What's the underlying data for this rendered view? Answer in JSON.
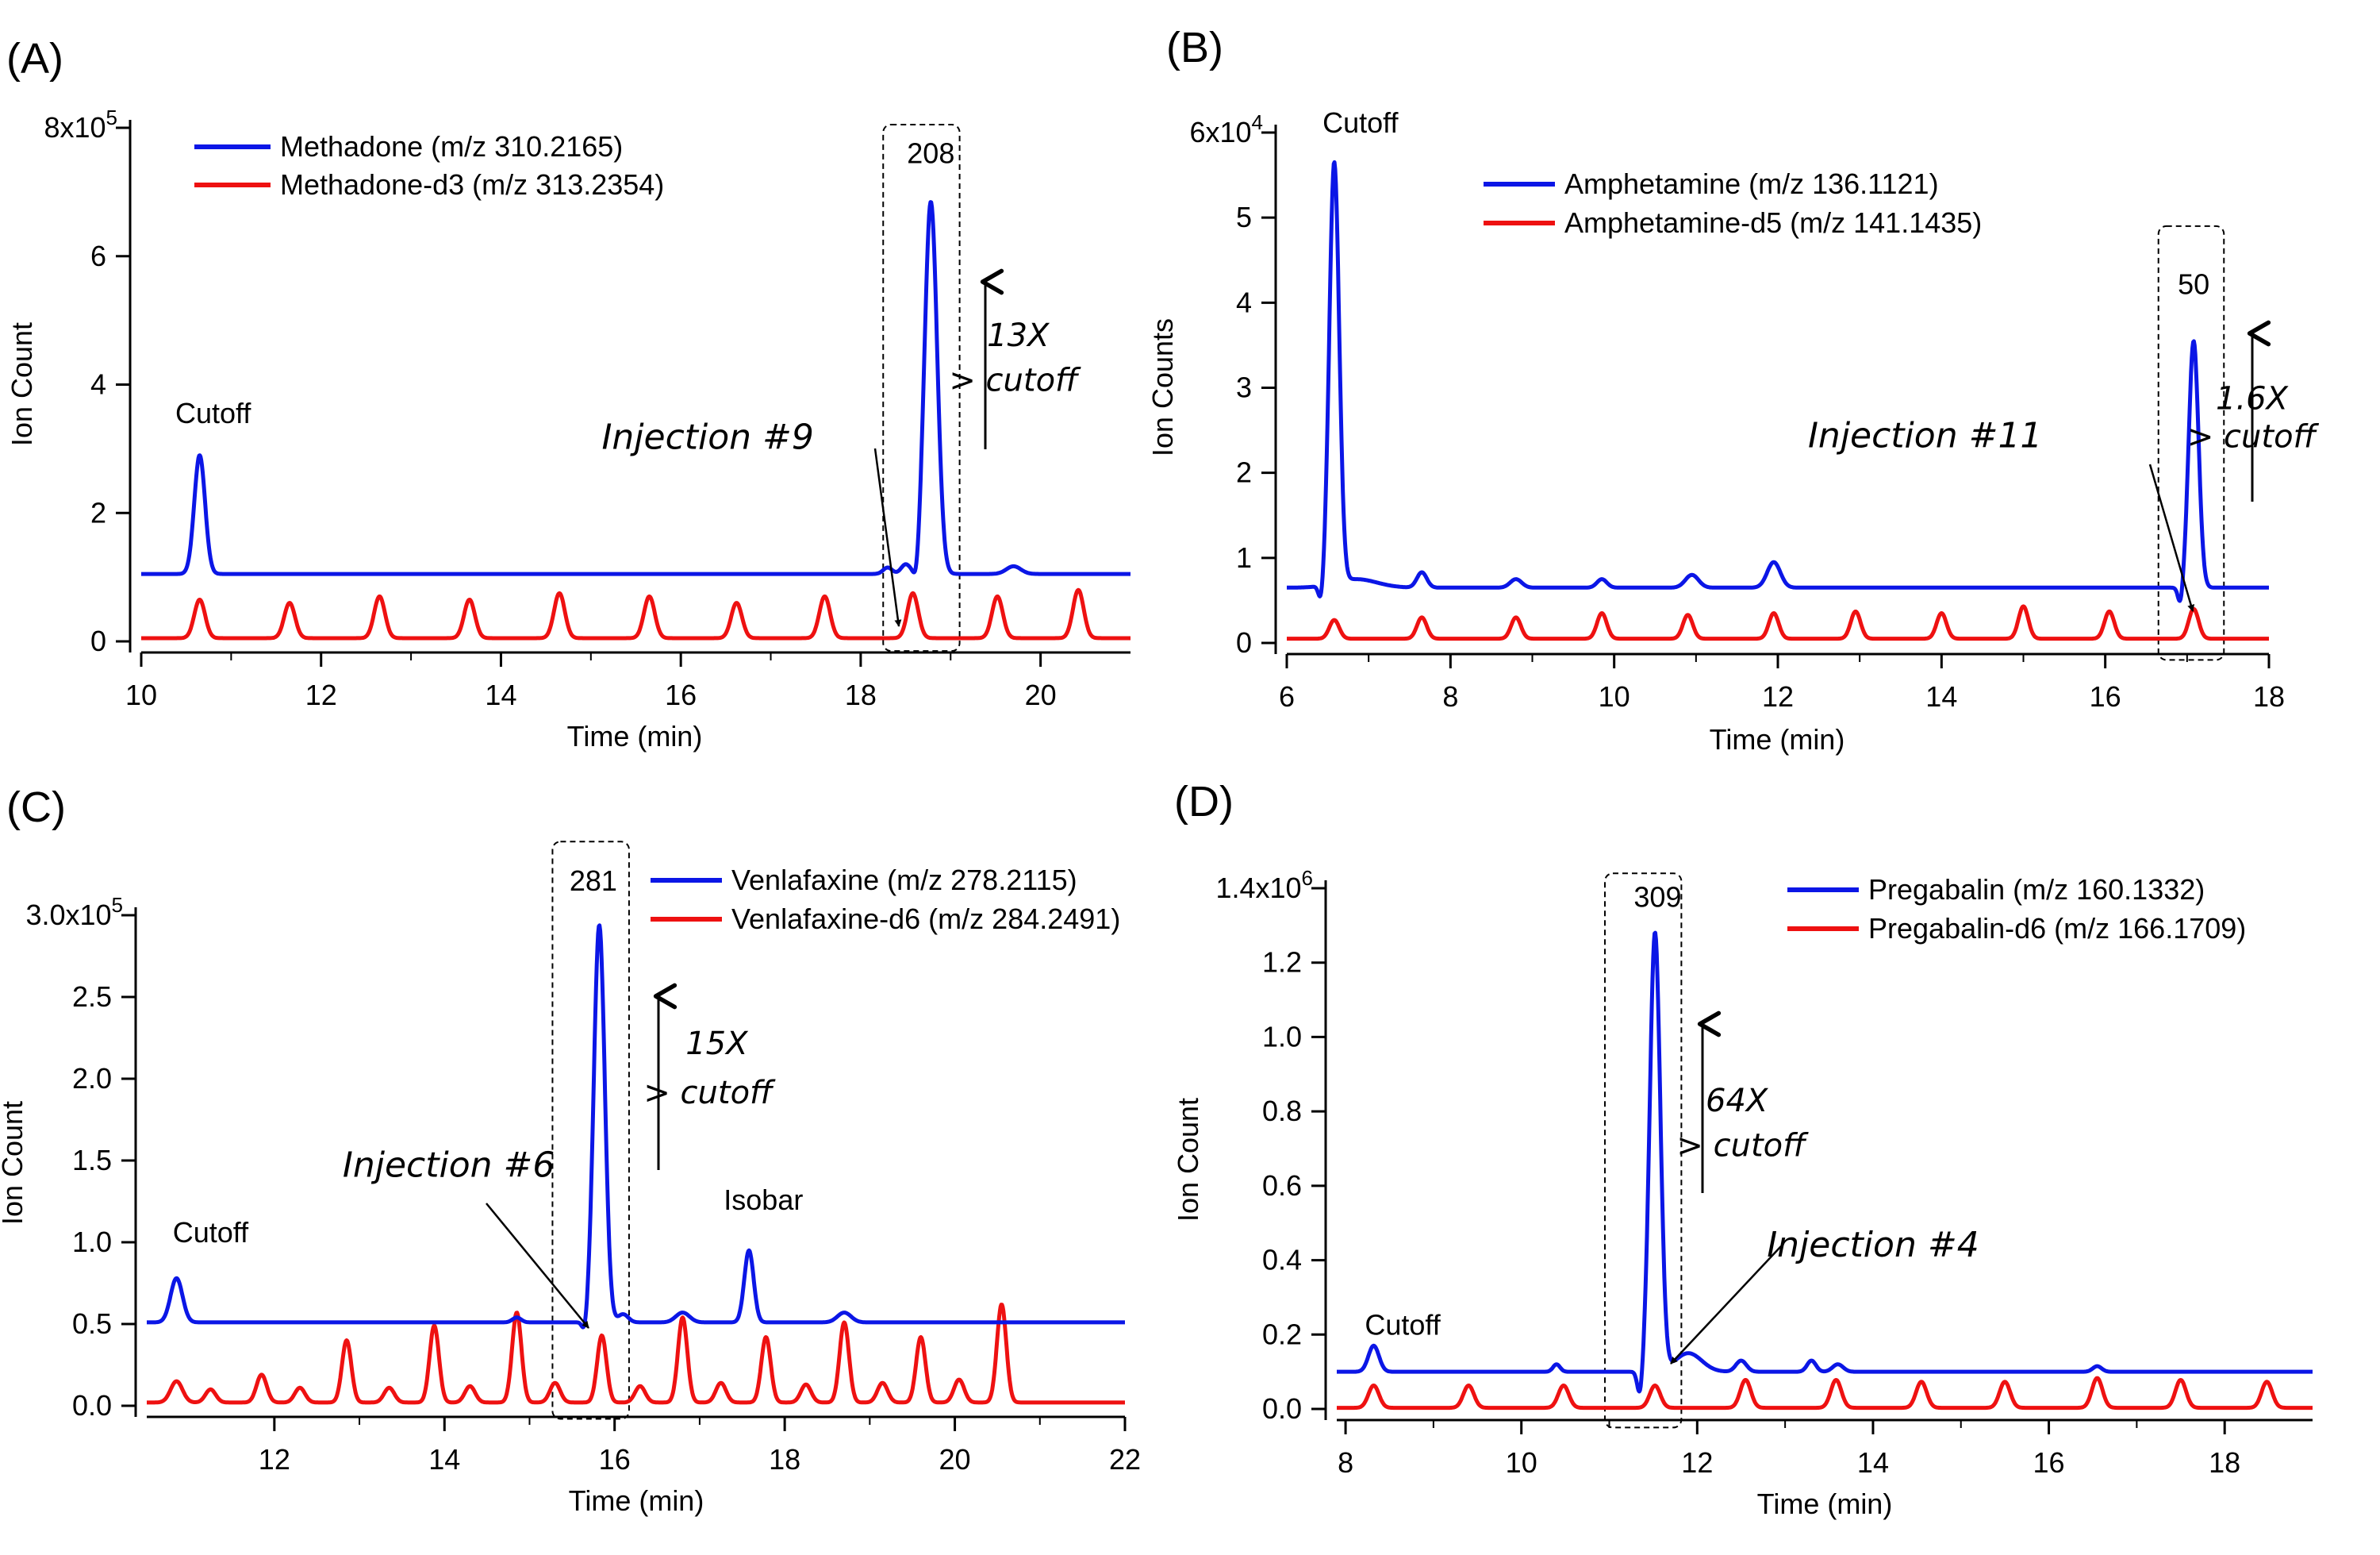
{
  "figure": {
    "description_panels": [
      "A",
      "B",
      "C",
      "D"
    ]
  },
  "chart_data": [
    {
      "type": "line",
      "panel_label": "(A)",
      "xlabel": "Time (min)",
      "ylabel": "Ion Count",
      "xlim": [
        10,
        21
      ],
      "xticks": [
        10,
        12,
        14,
        16,
        18,
        20
      ],
      "ylim": [
        0,
        8
      ],
      "yticks": [
        {
          "v": 0,
          "label": "0"
        },
        {
          "v": 2,
          "label": "2"
        },
        {
          "v": 4,
          "label": "4"
        },
        {
          "v": 6,
          "label": "6"
        },
        {
          "v": 8,
          "label": "8x10",
          "exp": "5"
        }
      ],
      "series": [
        {
          "name": "Methadone (m/z 310.2165)",
          "color": "#0b16e6",
          "baseline": 1.05,
          "peaks": [
            {
              "t": 10.65,
              "h": 1.85,
              "w": 0.06
            },
            {
              "t": 18.3,
              "h": 0.1,
              "w": 0.05
            },
            {
              "t": 18.5,
              "h": 0.15,
              "w": 0.05
            },
            {
              "t": 18.78,
              "h": 5.8,
              "w": 0.07
            },
            {
              "t": 19.7,
              "h": 0.12,
              "w": 0.08
            }
          ],
          "dips": [
            {
              "t": 18.62,
              "h": 0.25,
              "w": 0.03
            }
          ]
        },
        {
          "name": "Methadone-d3 (m/z 313.2354)",
          "color": "#ee1111",
          "baseline": 0.05,
          "peaks": [
            {
              "t": 10.65,
              "h": 0.6,
              "w": 0.06
            },
            {
              "t": 11.65,
              "h": 0.55,
              "w": 0.06
            },
            {
              "t": 12.65,
              "h": 0.65,
              "w": 0.06
            },
            {
              "t": 13.65,
              "h": 0.6,
              "w": 0.06
            },
            {
              "t": 14.65,
              "h": 0.7,
              "w": 0.06
            },
            {
              "t": 15.65,
              "h": 0.65,
              "w": 0.06
            },
            {
              "t": 16.62,
              "h": 0.55,
              "w": 0.06
            },
            {
              "t": 17.6,
              "h": 0.65,
              "w": 0.06
            },
            {
              "t": 18.58,
              "h": 0.7,
              "w": 0.06
            },
            {
              "t": 19.52,
              "h": 0.65,
              "w": 0.06
            },
            {
              "t": 20.42,
              "h": 0.75,
              "w": 0.06
            }
          ]
        }
      ],
      "annotations": [
        {
          "text": "Cutoff",
          "x": 10.8,
          "y": 3.4
        },
        {
          "text": "208",
          "x": 18.78,
          "y": 7.45
        },
        {
          "text": "13X",
          "x": 19.75,
          "y": 4.6,
          "style": "italic"
        },
        {
          "text": "> cutoff",
          "x": 19.7,
          "y": 3.9,
          "style": "italic"
        },
        {
          "text": "Injection #9",
          "x": 16.3,
          "y": 3.0,
          "style": "italic"
        }
      ],
      "box": {
        "x0": 18.25,
        "x1": 19.1,
        "y0": -0.15,
        "y1": 8.05
      },
      "legend_position": "top-left"
    },
    {
      "type": "line",
      "panel_label": "(B)",
      "xlabel": "Time (min)",
      "ylabel": "Ion Counts",
      "xlim": [
        6,
        18
      ],
      "xticks": [
        6,
        8,
        10,
        12,
        14,
        16,
        18
      ],
      "ylim": [
        0,
        6
      ],
      "yticks": [
        {
          "v": 0,
          "label": "0"
        },
        {
          "v": 1,
          "label": "1"
        },
        {
          "v": 2,
          "label": "2"
        },
        {
          "v": 3,
          "label": "3"
        },
        {
          "v": 4,
          "label": "4"
        },
        {
          "v": 5,
          "label": "5"
        },
        {
          "v": 6,
          "label": "6x10",
          "exp": "4"
        }
      ],
      "series": [
        {
          "name": "Amphetamine (m/z 136.1121)",
          "color": "#0b16e6",
          "baseline": 0.65,
          "peaks": [
            {
              "t": 6.58,
              "h": 4.95,
              "w": 0.06
            },
            {
              "t": 6.85,
              "h": 0.1,
              "w": 0.25
            },
            {
              "t": 7.65,
              "h": 0.18,
              "w": 0.06
            },
            {
              "t": 8.8,
              "h": 0.1,
              "w": 0.07
            },
            {
              "t": 9.85,
              "h": 0.1,
              "w": 0.06
            },
            {
              "t": 10.95,
              "h": 0.15,
              "w": 0.08
            },
            {
              "t": 11.95,
              "h": 0.3,
              "w": 0.08
            },
            {
              "t": 17.08,
              "h": 2.9,
              "w": 0.06
            }
          ],
          "dips": [
            {
              "t": 6.42,
              "h": 0.22,
              "w": 0.03
            },
            {
              "t": 16.92,
              "h": 0.22,
              "w": 0.03
            }
          ]
        },
        {
          "name": "Amphetamine-d5 (m/z 141.1435)",
          "color": "#ee1111",
          "baseline": 0.05,
          "peaks": [
            {
              "t": 6.58,
              "h": 0.22,
              "w": 0.06
            },
            {
              "t": 7.65,
              "h": 0.25,
              "w": 0.06
            },
            {
              "t": 8.8,
              "h": 0.25,
              "w": 0.06
            },
            {
              "t": 9.85,
              "h": 0.3,
              "w": 0.06
            },
            {
              "t": 10.9,
              "h": 0.28,
              "w": 0.06
            },
            {
              "t": 11.95,
              "h": 0.3,
              "w": 0.06
            },
            {
              "t": 12.95,
              "h": 0.32,
              "w": 0.06
            },
            {
              "t": 14.0,
              "h": 0.3,
              "w": 0.06
            },
            {
              "t": 15.0,
              "h": 0.38,
              "w": 0.06
            },
            {
              "t": 16.05,
              "h": 0.32,
              "w": 0.06
            },
            {
              "t": 17.08,
              "h": 0.35,
              "w": 0.06
            }
          ]
        }
      ],
      "annotations": [
        {
          "text": "Cutoff",
          "x": 6.9,
          "y": 6.0
        },
        {
          "text": "50",
          "x": 17.08,
          "y": 4.1
        },
        {
          "text": "1.6X",
          "x": 17.35,
          "y": 2.75,
          "style": "italic",
          "anchor": "start"
        },
        {
          "text": "> cutoff",
          "x": 17.0,
          "y": 2.3,
          "style": "italic",
          "anchor": "start"
        },
        {
          "text": "Injection #11",
          "x": 13.8,
          "y": 2.3,
          "style": "italic"
        }
      ],
      "box": {
        "x0": 16.65,
        "x1": 17.45,
        "y0": -0.2,
        "y1": 4.9
      },
      "legend_position": "top-right"
    },
    {
      "type": "line",
      "panel_label": "(C)",
      "xlabel": "Time (min)",
      "ylabel": "Ion Count",
      "xlim": [
        10.5,
        22
      ],
      "xticks": [
        12,
        14,
        16,
        18,
        20,
        22
      ],
      "ylim": [
        0,
        3.0
      ],
      "yticks": [
        {
          "v": 0,
          "label": "0.0"
        },
        {
          "v": 0.5,
          "label": "0.5"
        },
        {
          "v": 1.0,
          "label": "1.0"
        },
        {
          "v": 1.5,
          "label": "1.5"
        },
        {
          "v": 2.0,
          "label": "2.0"
        },
        {
          "v": 2.5,
          "label": "2.5"
        },
        {
          "v": 3.0,
          "label": "3.0x10",
          "exp": "5"
        }
      ],
      "series": [
        {
          "name": "Venlafaxine (m/z 278.2115)",
          "color": "#0b16e6",
          "baseline": 0.51,
          "peaks": [
            {
              "t": 10.85,
              "h": 0.27,
              "w": 0.07
            },
            {
              "t": 14.85,
              "h": 0.03,
              "w": 0.05
            },
            {
              "t": 15.82,
              "h": 2.43,
              "w": 0.065
            },
            {
              "t": 16.1,
              "h": 0.05,
              "w": 0.06
            },
            {
              "t": 16.8,
              "h": 0.06,
              "w": 0.08
            },
            {
              "t": 17.58,
              "h": 0.44,
              "w": 0.055
            },
            {
              "t": 18.7,
              "h": 0.06,
              "w": 0.08
            }
          ],
          "dips": [
            {
              "t": 15.65,
              "h": 0.08,
              "w": 0.03
            }
          ]
        },
        {
          "name": "Venlafaxine-d6 (m/z 284.2491)",
          "color": "#ee1111",
          "baseline": 0.02,
          "peaks": [
            {
              "t": 10.85,
              "h": 0.13,
              "w": 0.07
            },
            {
              "t": 11.25,
              "h": 0.08,
              "w": 0.06
            },
            {
              "t": 11.85,
              "h": 0.17,
              "w": 0.06
            },
            {
              "t": 12.3,
              "h": 0.09,
              "w": 0.06
            },
            {
              "t": 12.85,
              "h": 0.38,
              "w": 0.055
            },
            {
              "t": 13.35,
              "h": 0.09,
              "w": 0.06
            },
            {
              "t": 13.88,
              "h": 0.47,
              "w": 0.055
            },
            {
              "t": 14.3,
              "h": 0.1,
              "w": 0.06
            },
            {
              "t": 14.85,
              "h": 0.55,
              "w": 0.055
            },
            {
              "t": 15.3,
              "h": 0.12,
              "w": 0.06
            },
            {
              "t": 15.85,
              "h": 0.41,
              "w": 0.055
            },
            {
              "t": 16.3,
              "h": 0.1,
              "w": 0.06
            },
            {
              "t": 16.8,
              "h": 0.52,
              "w": 0.055
            },
            {
              "t": 17.25,
              "h": 0.12,
              "w": 0.06
            },
            {
              "t": 17.78,
              "h": 0.4,
              "w": 0.055
            },
            {
              "t": 18.25,
              "h": 0.11,
              "w": 0.06
            },
            {
              "t": 18.7,
              "h": 0.49,
              "w": 0.055
            },
            {
              "t": 19.15,
              "h": 0.12,
              "w": 0.06
            },
            {
              "t": 19.6,
              "h": 0.4,
              "w": 0.055
            },
            {
              "t": 20.05,
              "h": 0.14,
              "w": 0.06
            },
            {
              "t": 20.55,
              "h": 0.6,
              "w": 0.055
            }
          ]
        }
      ],
      "annotations": [
        {
          "text": "Cutoff",
          "x": 11.25,
          "y": 1.0
        },
        {
          "text": "281",
          "x": 15.75,
          "y": 3.15
        },
        {
          "text": "Isobar",
          "x": 17.75,
          "y": 1.2
        },
        {
          "text": "15X",
          "x": 17.2,
          "y": 2.15,
          "style": "italic"
        },
        {
          "text": "> cutoff",
          "x": 17.1,
          "y": 1.85,
          "style": "italic"
        },
        {
          "text": "Injection #6",
          "x": 14.05,
          "y": 1.4,
          "style": "italic"
        }
      ],
      "box": {
        "x0": 15.27,
        "x1": 16.17,
        "y0": -0.08,
        "y1": 3.45
      },
      "legend_position": "top-right"
    },
    {
      "type": "line",
      "panel_label": "(D)",
      "xlabel": "Time (min)",
      "ylabel": "Ion Count",
      "xlim": [
        7.9,
        19
      ],
      "xticks": [
        8,
        10,
        12,
        14,
        16,
        18
      ],
      "ylim": [
        0,
        1.4
      ],
      "yticks": [
        {
          "v": 0,
          "label": "0.0"
        },
        {
          "v": 0.2,
          "label": "0.2"
        },
        {
          "v": 0.4,
          "label": "0.4"
        },
        {
          "v": 0.6,
          "label": "0.6"
        },
        {
          "v": 0.8,
          "label": "0.8"
        },
        {
          "v": 1.0,
          "label": "1.0"
        },
        {
          "v": 1.2,
          "label": "1.2"
        },
        {
          "v": 1.4,
          "label": "1.4x10",
          "exp": "6"
        }
      ],
      "series": [
        {
          "name": "Pregabalin (m/z 160.1332)",
          "color": "#0b16e6",
          "baseline": 0.1,
          "peaks": [
            {
              "t": 8.32,
              "h": 0.07,
              "w": 0.06
            },
            {
              "t": 10.4,
              "h": 0.02,
              "w": 0.04
            },
            {
              "t": 11.52,
              "h": 1.18,
              "w": 0.06
            },
            {
              "t": 11.9,
              "h": 0.05,
              "w": 0.15
            },
            {
              "t": 12.5,
              "h": 0.03,
              "w": 0.06
            },
            {
              "t": 13.3,
              "h": 0.03,
              "w": 0.05
            },
            {
              "t": 13.6,
              "h": 0.02,
              "w": 0.06
            },
            {
              "t": 16.55,
              "h": 0.015,
              "w": 0.05
            }
          ],
          "dips": [
            {
              "t": 11.35,
              "h": 0.07,
              "w": 0.03
            }
          ]
        },
        {
          "name": "Pregabalin-d6 (m/z 166.1709)",
          "color": "#ee1111",
          "baseline": 0.003,
          "peaks": [
            {
              "t": 8.32,
              "h": 0.06,
              "w": 0.06
            },
            {
              "t": 9.4,
              "h": 0.06,
              "w": 0.06
            },
            {
              "t": 10.48,
              "h": 0.06,
              "w": 0.06
            },
            {
              "t": 11.52,
              "h": 0.06,
              "w": 0.06
            },
            {
              "t": 12.55,
              "h": 0.075,
              "w": 0.06
            },
            {
              "t": 13.58,
              "h": 0.075,
              "w": 0.06
            },
            {
              "t": 14.55,
              "h": 0.07,
              "w": 0.06
            },
            {
              "t": 15.5,
              "h": 0.07,
              "w": 0.06
            },
            {
              "t": 16.55,
              "h": 0.08,
              "w": 0.06
            },
            {
              "t": 17.5,
              "h": 0.075,
              "w": 0.06
            },
            {
              "t": 18.48,
              "h": 0.07,
              "w": 0.06
            }
          ]
        }
      ],
      "annotations": [
        {
          "text": "Cutoff",
          "x": 8.65,
          "y": 0.2
        },
        {
          "text": "309",
          "x": 11.55,
          "y": 1.35
        },
        {
          "text": "64X",
          "x": 12.45,
          "y": 0.8,
          "style": "italic"
        },
        {
          "text": "> cutoff",
          "x": 12.5,
          "y": 0.68,
          "style": "italic"
        },
        {
          "text": "Injection #4",
          "x": 14.0,
          "y": 0.41,
          "style": "italic"
        }
      ],
      "box": {
        "x0": 10.95,
        "x1": 11.82,
        "y0": -0.05,
        "y1": 1.44
      },
      "legend_position": "top-right"
    }
  ]
}
